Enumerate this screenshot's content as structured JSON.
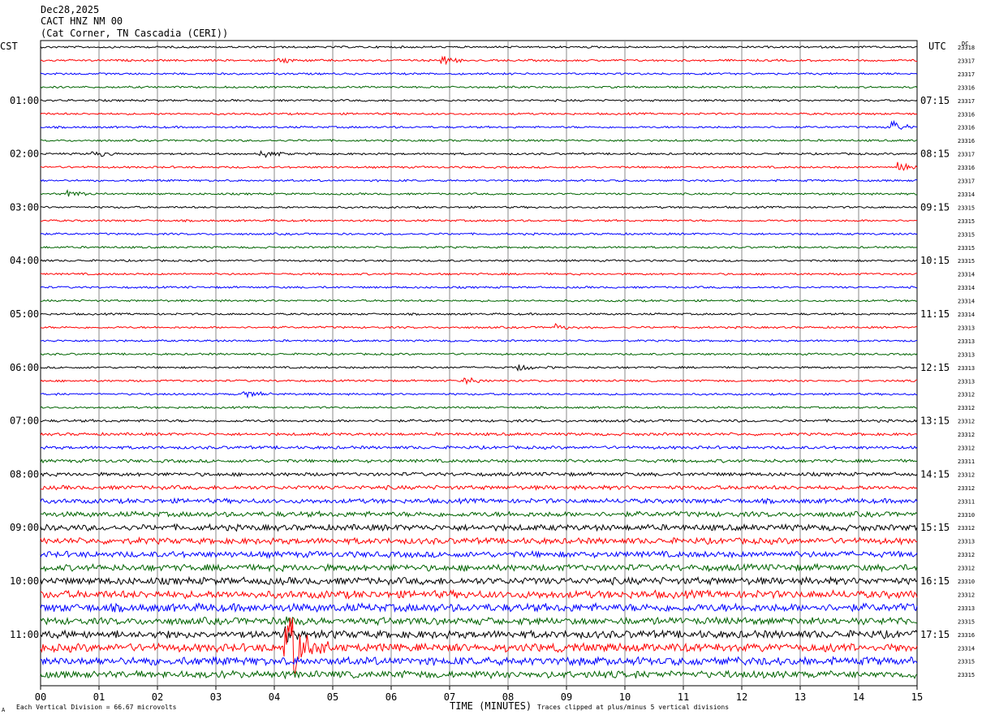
{
  "header": {
    "date": "Dec28,2025",
    "station": "CACT HNZ NM 00",
    "location": "(Cat Corner, TN Cascadia (CERI))"
  },
  "chart_data": {
    "type": "line",
    "title": "",
    "xlabel": "TIME (MINUTES)",
    "xlim": [
      0,
      15
    ],
    "x_ticks": [
      "00",
      "01",
      "02",
      "03",
      "04",
      "05",
      "06",
      "07",
      "08",
      "09",
      "10",
      "11",
      "12",
      "13",
      "14",
      "15"
    ],
    "left_axis_label": "CST",
    "right_axis_label": "UTC",
    "dc_label": "DC",
    "left_hour_labels": [
      "01:00",
      "02:00",
      "03:00",
      "04:00",
      "05:00",
      "06:00",
      "07:00",
      "08:00",
      "09:00",
      "10:00",
      "11:00"
    ],
    "right_hour_labels": [
      "07:15",
      "08:15",
      "09:15",
      "10:15",
      "11:15",
      "12:15",
      "13:15",
      "14:15",
      "15:15",
      "16:15",
      "17:15"
    ],
    "trace_colors": [
      "#000000",
      "#ff0000",
      "#0000ff",
      "#006400"
    ],
    "grid": "vertical",
    "dc_offsets": [
      23318,
      23317,
      23317,
      23316,
      23317,
      23316,
      23316,
      23316,
      23317,
      23316,
      23317,
      23314,
      23315,
      23315,
      23315,
      23315,
      23315,
      23314,
      23314,
      23314,
      23314,
      23313,
      23313,
      23313,
      23313,
      23313,
      23312,
      23312,
      23312,
      23312,
      23312,
      23311,
      23312,
      23312,
      23311,
      23310,
      23312,
      23313,
      23312,
      23312,
      23310,
      23312,
      23313,
      23315,
      23316,
      23314,
      23315,
      23315
    ],
    "trace_activity": [
      1,
      1,
      1,
      1,
      1,
      1,
      1,
      1,
      1,
      1,
      1,
      1,
      1,
      1,
      1,
      1,
      1,
      1,
      1,
      1,
      1,
      1,
      1,
      1,
      1,
      1,
      1,
      1,
      1.3,
      1.4,
      1.5,
      1.6,
      1.8,
      2,
      2.3,
      2.6,
      3,
      3,
      3,
      3.2,
      3.5,
      3.8,
      4,
      3.5,
      3.8,
      4,
      4,
      3.5
    ],
    "events": [
      {
        "trace": 1,
        "minute": 6.9,
        "amplitude": 3
      },
      {
        "trace": 1,
        "minute": 4.1,
        "amplitude": 2.5
      },
      {
        "trace": 6,
        "minute": 14.6,
        "amplitude": 5
      },
      {
        "trace": 8,
        "minute": 0.9,
        "amplitude": 3
      },
      {
        "trace": 8,
        "minute": 3.8,
        "amplitude": 3
      },
      {
        "trace": 9,
        "minute": 14.7,
        "amplitude": 4
      },
      {
        "trace": 11,
        "minute": 0.5,
        "amplitude": 3
      },
      {
        "trace": 21,
        "minute": 8.8,
        "amplitude": 3
      },
      {
        "trace": 24,
        "minute": 8.2,
        "amplitude": 3
      },
      {
        "trace": 25,
        "minute": 7.3,
        "amplitude": 3
      },
      {
        "trace": 26,
        "minute": 3.5,
        "amplitude": 3
      },
      {
        "trace": 45,
        "minute": 4.2,
        "amplitude": 20
      },
      {
        "trace": 44,
        "minute": 4.2,
        "amplitude": 8
      },
      {
        "trace": 43,
        "minute": 4.2,
        "amplitude": 5
      }
    ]
  },
  "footer": {
    "scale_note": "Each Vertical Division =   66.67 microvolts",
    "clip_note": "Traces clipped at plus/minus 5 vertical divisions",
    "corner_mark": "A"
  }
}
